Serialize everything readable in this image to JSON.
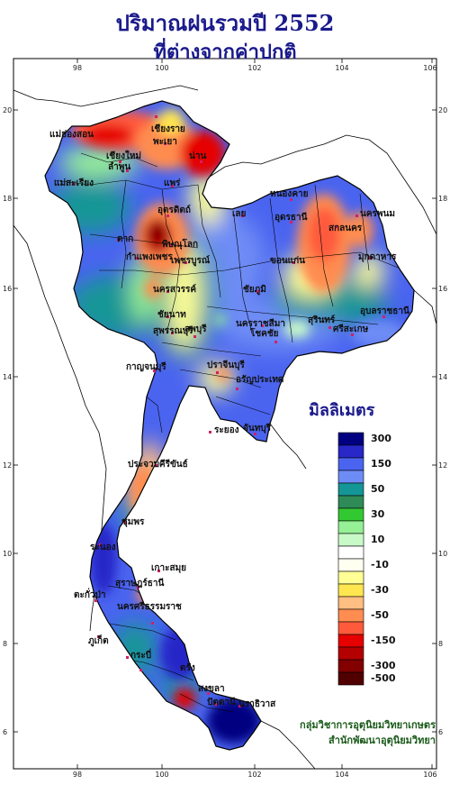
{
  "title_line1": "ปริมาณฝนรวมปี  2552",
  "title_line2": "ที่ต่างจากค่าปกติ",
  "legend_title": "มิลลิเมตร",
  "credit_line1": "กลุ่มวิชาการอุตุนิยมวิทยาเกษตร",
  "credit_line2": "สำนักพัฒนาอุตุนิยมวิทยา",
  "lon_ticks": [
    "98",
    "100",
    "102",
    "104",
    "106"
  ],
  "lat_ticks": [
    "20",
    "18",
    "16",
    "14",
    "12",
    "10",
    "8",
    "6"
  ],
  "legend": [
    {
      "color": "#000080",
      "label": "300"
    },
    {
      "color": "#2828c8",
      "label": ""
    },
    {
      "color": "#4a64f0",
      "label": "150"
    },
    {
      "color": "#6e8cf5",
      "label": ""
    },
    {
      "color": "#149696",
      "label": "50"
    },
    {
      "color": "#2e8b57",
      "label": ""
    },
    {
      "color": "#32c832",
      "label": "30"
    },
    {
      "color": "#96f096",
      "label": ""
    },
    {
      "color": "#c8fac8",
      "label": "10"
    },
    {
      "color": "#ffffff",
      "label": ""
    },
    {
      "color": "#fffff0",
      "label": "-10"
    },
    {
      "color": "#ffff96",
      "label": ""
    },
    {
      "color": "#ffe650",
      "label": "-30"
    },
    {
      "color": "#ffbe82",
      "label": ""
    },
    {
      "color": "#ff8c50",
      "label": "-50"
    },
    {
      "color": "#ff5a3c",
      "label": ""
    },
    {
      "color": "#e60000",
      "label": "-150"
    },
    {
      "color": "#b40000",
      "label": ""
    },
    {
      "color": "#820000",
      "label": "-300"
    },
    {
      "color": "#500000",
      "label": "-500"
    }
  ],
  "places": [
    {
      "name": "เชียงราย"
    },
    {
      "name": "แม่ฮ่องสอน"
    },
    {
      "name": "พะเยา"
    },
    {
      "name": "เชียงใหม่"
    },
    {
      "name": "น่าน"
    },
    {
      "name": "ลำพูน"
    },
    {
      "name": "แม่สะเรียง"
    },
    {
      "name": "แพร่"
    },
    {
      "name": "หนองคาย"
    },
    {
      "name": "อุตรดิตถ์"
    },
    {
      "name": "นครพนม"
    },
    {
      "name": "เลย"
    },
    {
      "name": "อุดรธานี"
    },
    {
      "name": "สกลนคร"
    },
    {
      "name": "ตาก"
    },
    {
      "name": "พิษณุโลก"
    },
    {
      "name": "มุกดาหาร"
    },
    {
      "name": "กำแพงเพชร"
    },
    {
      "name": "เพชรบูรณ์"
    },
    {
      "name": "ขอนแก่น"
    },
    {
      "name": "นครสวรรค์"
    },
    {
      "name": "ชัยภูมิ"
    },
    {
      "name": "อุบลราชธานี"
    },
    {
      "name": "ชัยนาท"
    },
    {
      "name": "นครราชสีมา"
    },
    {
      "name": "สุรินทร์"
    },
    {
      "name": "สุพรรณบุรี"
    },
    {
      "name": "โชคชัย"
    },
    {
      "name": "ลพบุรี"
    },
    {
      "name": "ศรีสะเกษ"
    },
    {
      "name": "กาญจนบุรี"
    },
    {
      "name": "ปราจีนบุรี"
    },
    {
      "name": "อรัญประเทศ"
    },
    {
      "name": "ระยอง"
    },
    {
      "name": "จันทบุรี"
    },
    {
      "name": "ประจวบคีรีขันธ์"
    },
    {
      "name": "ชุมพร"
    },
    {
      "name": "ระนอง"
    },
    {
      "name": "เกาะสมุย"
    },
    {
      "name": "สุราษฎร์ธานี"
    },
    {
      "name": "ตะกั่วป่า"
    },
    {
      "name": "นครศรีธรรมราช"
    },
    {
      "name": "ภูเก็ต"
    },
    {
      "name": "กระบี่"
    },
    {
      "name": "ตรัง"
    },
    {
      "name": "สงขลา"
    },
    {
      "name": "ปัตตานี"
    },
    {
      "name": "นราธิวาส"
    }
  ]
}
